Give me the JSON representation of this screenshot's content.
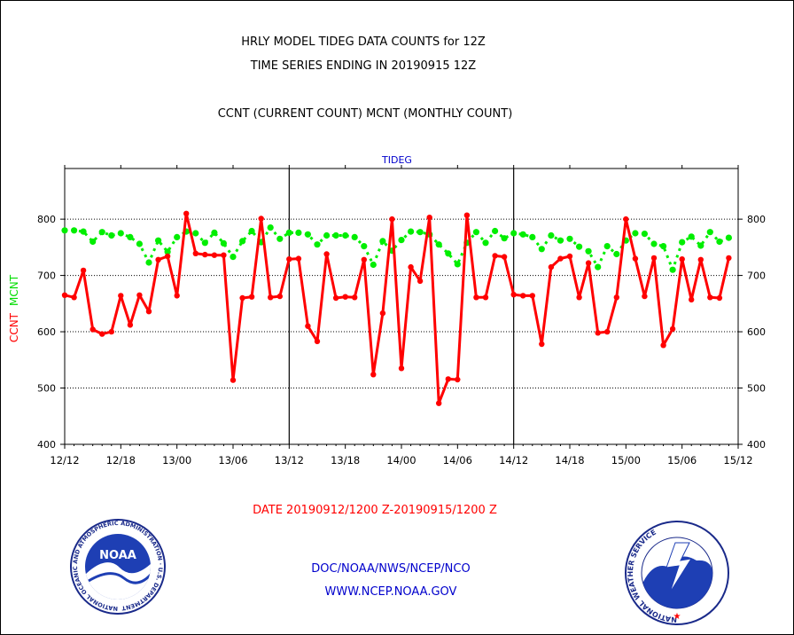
{
  "header": {
    "title_line1": "HRLY MODEL TIDEG DATA COUNTS for 12Z",
    "title_line2": "TIME SERIES ENDING IN 20190915 12Z",
    "subtitle": "CCNT (CURRENT COUNT) MCNT (MONTHLY COUNT)"
  },
  "footer": {
    "date_range": "DATE 20190912/1200 Z-20190915/1200 Z",
    "org_line": "DOC/NOAA/NWS/NCEP/NCO",
    "url_line": "WWW.NCEP.NOAA.GOV"
  },
  "logos": {
    "left": {
      "center_text": "NOAA",
      "ring_text": "NATIONAL OCEANIC AND ATMOSPHERIC ADMINISTRATION · U.S. DEPARTMENT OF COMMERCE"
    },
    "right": {
      "ring_text": "NATIONAL WEATHER SERVICE"
    }
  },
  "colors": {
    "ccnt": "#ff0000",
    "mcnt": "#00ee00",
    "panel_label": "#0000cc",
    "footer_text": "#0000cc",
    "date_text": "#ff0000"
  },
  "chart_data": {
    "type": "line",
    "panel_label": "TIDEG",
    "ylabel_parts": [
      {
        "text": "CCNT",
        "color": "#ff0000"
      },
      {
        "text": "MCNT",
        "color": "#00ee00"
      }
    ],
    "x_tick_labels": [
      "12/12",
      "12/18",
      "13/00",
      "13/06",
      "13/12",
      "13/18",
      "14/00",
      "14/06",
      "14/12",
      "14/18",
      "15/00",
      "15/06",
      "15/12"
    ],
    "x_hours_range": [
      0,
      72
    ],
    "y_ticks": [
      400,
      500,
      600,
      700,
      800
    ],
    "ylim": [
      400,
      890
    ],
    "gridlines": [
      500,
      600,
      700,
      800
    ],
    "day_dividers_hours": [
      24,
      48
    ],
    "series": [
      {
        "key": "CCNT",
        "values": [
          665,
          661,
          709,
          604,
          596,
          600,
          664,
          612,
          665,
          636,
          728,
          734,
          664,
          810,
          739,
          737,
          736,
          736,
          514,
          660,
          662,
          801,
          661,
          663,
          729,
          730,
          610,
          583,
          738,
          660,
          662,
          661,
          728,
          524,
          633,
          800,
          535,
          715,
          690,
          803,
          473,
          516,
          515,
          807,
          661,
          661,
          735,
          733,
          666,
          664,
          664,
          578,
          715,
          730,
          734,
          661,
          722,
          598,
          600,
          661,
          800,
          730,
          663,
          731,
          576,
          605,
          729,
          657,
          728,
          661,
          660,
          731
        ]
      },
      {
        "key": "MCNT",
        "values": [
          780,
          780,
          778,
          760,
          777,
          771,
          775,
          768,
          756,
          723,
          762,
          742,
          768,
          778,
          775,
          758,
          776,
          757,
          733,
          761,
          779,
          759,
          785,
          765,
          776,
          776,
          773,
          755,
          771,
          771,
          771,
          768,
          752,
          719,
          761,
          744,
          763,
          778,
          777,
          773,
          755,
          739,
          720,
          758,
          777,
          758,
          779,
          766,
          775,
          773,
          768,
          747,
          771,
          762,
          765,
          751,
          743,
          715,
          752,
          738,
          762,
          775,
          774,
          756,
          752,
          710,
          759,
          769,
          753,
          777,
          760,
          767
        ]
      }
    ]
  }
}
